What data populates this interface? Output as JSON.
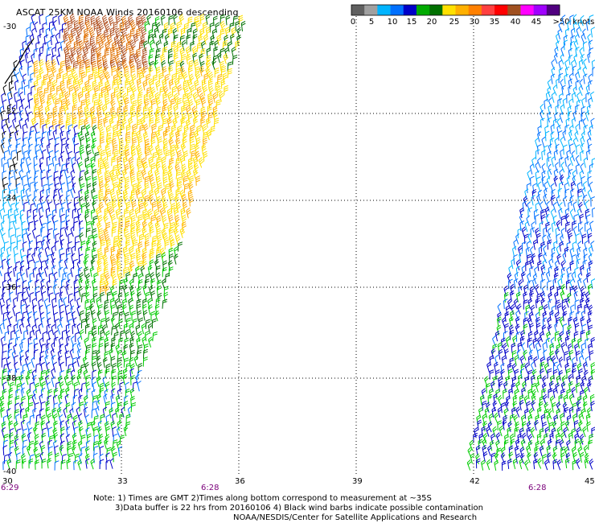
{
  "title": "ASCAT 25KM NOAA Winds 20160106 descending",
  "legend": {
    "colors": [
      "#606060",
      "#a0a0a0",
      "#00b4ff",
      "#0070ff",
      "#0000c8",
      "#00aa00",
      "#007000",
      "#ffe000",
      "#ffb000",
      "#ff8000",
      "#ff4040",
      "#ff0000",
      "#a05020",
      "#ff00ff",
      "#a000ff",
      "#500080"
    ],
    "ticks": [
      "0",
      "5",
      "10",
      "15",
      "20",
      "25",
      "30",
      "35",
      "40",
      "45",
      ">50"
    ],
    "unit": "knots"
  },
  "axes": {
    "lat_labels": [
      "-30",
      "-32",
      "-34",
      "-36",
      "-38",
      "-40"
    ],
    "lon_labels": [
      "30",
      "33",
      "36",
      "39",
      "42",
      "45"
    ]
  },
  "times": {
    "left": "6:29",
    "middle": "6:28",
    "right": "6:28"
  },
  "notes": {
    "line1": "Note: 1) Times are GMT 2)Times along bottom correspond to measurement at ~35S",
    "line2": "3)Data buffer is 22 hrs from 20160106 4) Black wind barbs indicate possible contamination",
    "line3": "NOAA/NESDIS/Center for Satellite Applications and Research"
  }
}
